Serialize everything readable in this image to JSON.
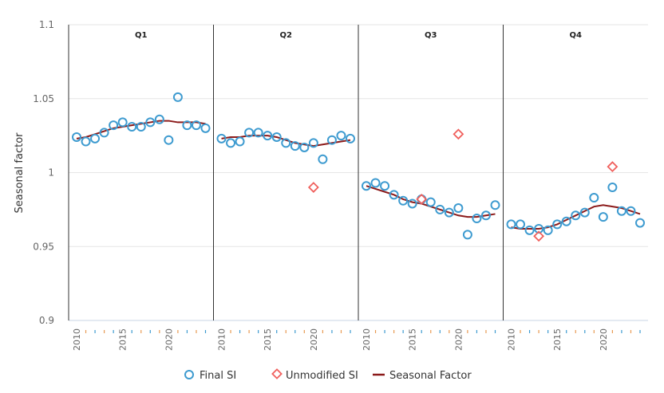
{
  "chart_data": {
    "type": "scatter",
    "ylabel": "Seasonal factor",
    "ylim": [
      0.9,
      1.1
    ],
    "yticks": [
      "0.9",
      "0.95",
      "1",
      "1.05",
      "1.1"
    ],
    "grid": true,
    "legend_position": "bottom",
    "x_tick_labels": [
      "2010",
      "2015",
      "2020"
    ],
    "years": [
      2010,
      2011,
      2012,
      2013,
      2014,
      2015,
      2016,
      2017,
      2018,
      2019,
      2020,
      2021,
      2022,
      2023,
      2024
    ],
    "colors": {
      "final_si": "#3e9bd0",
      "unmodified_si": "#f0605d",
      "seasonal_factor": "#8b1a1a"
    },
    "legend": {
      "final_si": "Final SI",
      "unmodified_si": "Unmodified SI",
      "seasonal_factor": "Seasonal Factor"
    },
    "panels": [
      {
        "title": "Q1",
        "final_si": [
          1.024,
          1.021,
          1.023,
          1.027,
          1.032,
          1.034,
          1.031,
          1.031,
          1.034,
          1.036,
          1.022,
          1.051,
          1.032,
          1.032,
          1.03
        ],
        "seasonal_factor": [
          1.023,
          1.024,
          1.026,
          1.028,
          1.03,
          1.031,
          1.032,
          1.033,
          1.034,
          1.035,
          1.035,
          1.034,
          1.034,
          1.034,
          1.033
        ],
        "unmodified_si": []
      },
      {
        "title": "Q2",
        "final_si": [
          1.023,
          1.02,
          1.021,
          1.027,
          1.027,
          1.025,
          1.024,
          1.02,
          1.018,
          1.017,
          1.02,
          1.009,
          1.022,
          1.025,
          1.023
        ],
        "seasonal_factor": [
          1.023,
          1.024,
          1.024,
          1.025,
          1.025,
          1.025,
          1.024,
          1.022,
          1.02,
          1.019,
          1.018,
          1.019,
          1.02,
          1.021,
          1.022
        ],
        "unmodified_si": [
          {
            "year": 2020,
            "value": 0.99
          }
        ]
      },
      {
        "title": "Q3",
        "final_si": [
          0.991,
          0.993,
          0.991,
          0.985,
          0.981,
          0.979,
          0.982,
          0.98,
          0.975,
          0.973,
          0.976,
          0.958,
          0.969,
          0.971,
          0.978
        ],
        "seasonal_factor": [
          0.991,
          0.989,
          0.987,
          0.985,
          0.982,
          0.98,
          0.979,
          0.977,
          0.975,
          0.973,
          0.971,
          0.97,
          0.97,
          0.971,
          0.972
        ],
        "unmodified_si": [
          {
            "year": 2016,
            "value": 0.982
          },
          {
            "year": 2020,
            "value": 1.026
          }
        ]
      },
      {
        "title": "Q4",
        "final_si": [
          0.965,
          0.965,
          0.961,
          0.962,
          0.961,
          0.965,
          0.967,
          0.971,
          0.973,
          0.983,
          0.97,
          0.99,
          0.974,
          0.974,
          0.966
        ],
        "seasonal_factor": [
          0.963,
          0.962,
          0.962,
          0.962,
          0.963,
          0.965,
          0.968,
          0.971,
          0.974,
          0.977,
          0.978,
          0.977,
          0.976,
          0.974,
          0.972
        ],
        "unmodified_si": [
          {
            "year": 2013,
            "value": 0.957
          },
          {
            "year": 2021,
            "value": 1.004
          }
        ]
      }
    ]
  }
}
